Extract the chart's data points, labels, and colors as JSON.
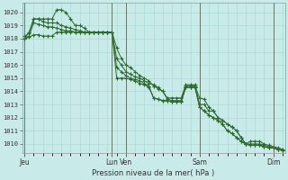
{
  "background_color": "#c8eae8",
  "grid_color": "#a8d8d0",
  "line_color": "#2d6a2d",
  "marker_color": "#2d6a2d",
  "xlabel_text": "Pression niveau de la mer( hPa )",
  "ylim": [
    1009.3,
    1020.7
  ],
  "yticks": [
    1010,
    1011,
    1012,
    1013,
    1014,
    1015,
    1016,
    1017,
    1018,
    1019,
    1020
  ],
  "day_labels": [
    "Jeu",
    "Lun",
    "Ven",
    "Sam",
    "Dim"
  ],
  "day_positions": [
    0,
    19,
    22,
    38,
    54
  ],
  "total_points": 57,
  "series": [
    [
      1018.0,
      1018.5,
      1019.5,
      1019.5,
      1019.5,
      1019.5,
      1019.5,
      1020.2,
      1020.2,
      1020.0,
      1019.5,
      1019.0,
      1019.0,
      1018.8,
      1018.5,
      1018.5,
      1018.5,
      1018.5,
      1018.5,
      1018.5,
      1017.3,
      1016.5,
      1016.0,
      1015.8,
      1015.5,
      1015.2,
      1015.0,
      1014.8,
      1014.4,
      1014.2,
      1014.0,
      1013.5,
      1013.5,
      1013.5,
      1013.5,
      1014.5,
      1014.5,
      1014.5,
      1013.0,
      1013.0,
      1012.5,
      1012.5,
      1012.0,
      1011.8,
      1011.5,
      1011.3,
      1011.0,
      1010.5,
      1010.0,
      1010.0,
      1010.0,
      1010.0,
      1009.9,
      1009.8,
      1009.7,
      1009.6,
      1009.5
    ],
    [
      1018.2,
      1018.4,
      1019.5,
      1019.5,
      1019.3,
      1019.2,
      1019.2,
      1019.2,
      1019.0,
      1018.9,
      1018.8,
      1018.7,
      1018.6,
      1018.5,
      1018.5,
      1018.5,
      1018.5,
      1018.5,
      1018.5,
      1018.5,
      1016.5,
      1016.0,
      1015.5,
      1015.3,
      1015.1,
      1015.0,
      1014.8,
      1014.6,
      1014.5,
      1014.3,
      1014.0,
      1013.4,
      1013.3,
      1013.3,
      1013.3,
      1014.4,
      1014.4,
      1014.4,
      1013.5,
      1013.4,
      1012.8,
      1012.5,
      1012.0,
      1011.8,
      1011.5,
      1011.3,
      1011.0,
      1010.5,
      1010.0,
      1010.2,
      1010.2,
      1010.2,
      1010.0,
      1009.9,
      1009.8,
      1009.7,
      1009.6
    ],
    [
      1018.0,
      1018.2,
      1019.2,
      1019.1,
      1019.0,
      1018.9,
      1018.9,
      1018.8,
      1018.7,
      1018.6,
      1018.6,
      1018.5,
      1018.5,
      1018.5,
      1018.5,
      1018.5,
      1018.5,
      1018.5,
      1018.5,
      1018.5,
      1015.8,
      1015.5,
      1015.2,
      1015.0,
      1014.9,
      1014.8,
      1014.6,
      1014.4,
      1013.5,
      1013.4,
      1013.3,
      1013.3,
      1013.2,
      1013.2,
      1013.2,
      1014.3,
      1014.3,
      1014.3,
      1012.8,
      1012.5,
      1012.2,
      1012.0,
      1011.8,
      1011.5,
      1011.0,
      1010.8,
      1010.5,
      1010.2,
      1010.0,
      1009.9,
      1009.9,
      1009.9,
      1009.8,
      1009.7,
      1009.7,
      1009.6,
      1009.5
    ],
    [
      1018.0,
      1018.1,
      1018.3,
      1018.3,
      1018.2,
      1018.2,
      1018.2,
      1018.5,
      1018.5,
      1018.5,
      1018.5,
      1018.5,
      1018.5,
      1018.5,
      1018.5,
      1018.5,
      1018.5,
      1018.5,
      1018.5,
      1018.5,
      1015.0,
      1015.0,
      1015.0,
      1014.9,
      1014.8,
      1014.6,
      1014.5,
      1014.3,
      1013.5,
      1013.4,
      1013.3,
      1013.3,
      1013.2,
      1013.2,
      1013.2,
      1014.3,
      1014.3,
      1014.3,
      1012.8,
      1012.5,
      1012.2,
      1012.0,
      1011.8,
      1011.5,
      1011.0,
      1010.8,
      1010.5,
      1010.2,
      1010.0,
      1009.9,
      1009.9,
      1009.9,
      1009.8,
      1009.7,
      1009.7,
      1009.6,
      1009.5
    ]
  ]
}
